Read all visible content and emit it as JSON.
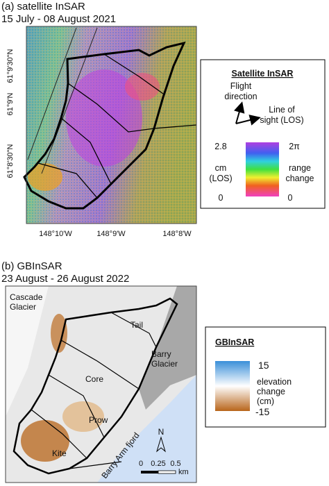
{
  "panel_a": {
    "title": "(a) satellite InSAR",
    "subtitle": "15 July - 08 August 2021",
    "lat_labels": [
      "61°9'30\"N",
      "61°9'N",
      "61°8'30\"N"
    ],
    "lon_labels": [
      "148°10'W",
      "148°9'W",
      "148°8'W"
    ],
    "legend": {
      "title": "Satellite InSAR",
      "flight": [
        "Flight",
        "direction"
      ],
      "los": [
        "Line of",
        "sight (LOS)"
      ],
      "left_top": 2.8,
      "left_label": [
        "cm",
        "(LOS)"
      ],
      "left_bottom": 0,
      "right_top": "2π",
      "right_label": [
        "range",
        "change"
      ],
      "right_bottom": 0
    }
  },
  "panel_b": {
    "title": "(b) GBInSAR",
    "subtitle": "23 August - 26 August 2022",
    "places": {
      "cascade": [
        "Cascade",
        "Glacier"
      ],
      "tail": "Tail",
      "barry": [
        "Barry",
        "Glacier"
      ],
      "core": "Core",
      "prow": "Prow",
      "kite": "Kite",
      "fjord": "Barry Arm fjord"
    },
    "north": "N",
    "scale": {
      "ticks": [
        0,
        0.25,
        0.5
      ],
      "unit": "km"
    },
    "legend": {
      "title": "GBInSAR",
      "top": 15,
      "label": [
        "elevation",
        "change",
        "(cm)"
      ],
      "bottom": -15
    }
  }
}
